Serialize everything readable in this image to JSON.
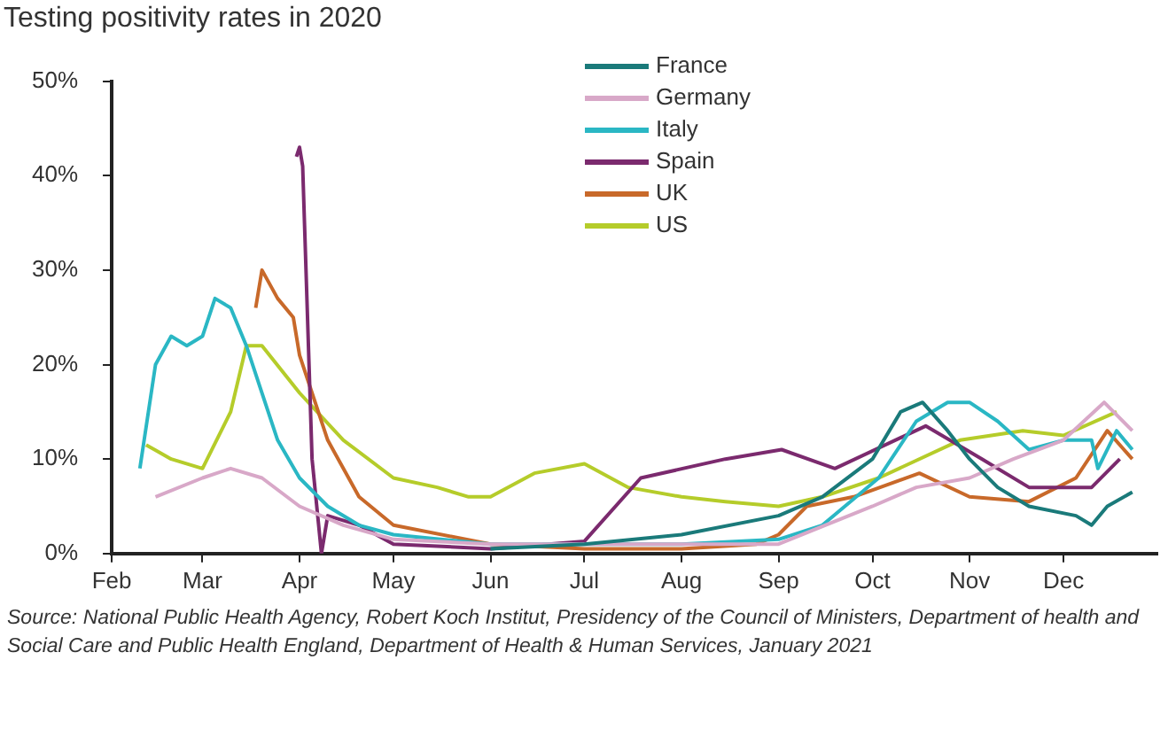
{
  "chart_data": {
    "type": "line",
    "title": "Testing positivity rates in 2020",
    "annotations": [
      "Source:  National Public Health Agency, Robert Koch Institut, Presidency of the Council of Ministers, Department of health and Social Care and Public Health England, Department of Health & Human Services, January 2021"
    ],
    "xlim": [
      "2020-02-01",
      "2020-12-31"
    ],
    "xticks": [
      {
        "value": "2020-02-01",
        "label": "Feb"
      },
      {
        "value": "2020-03-01",
        "label": "Mar"
      },
      {
        "value": "2020-04-01",
        "label": "Apr"
      },
      {
        "value": "2020-05-01",
        "label": "May"
      },
      {
        "value": "2020-06-01",
        "label": "Jun"
      },
      {
        "value": "2020-07-01",
        "label": "Jul"
      },
      {
        "value": "2020-08-01",
        "label": "Aug"
      },
      {
        "value": "2020-09-01",
        "label": "Sep"
      },
      {
        "value": "2020-10-01",
        "label": "Oct"
      },
      {
        "value": "2020-11-01",
        "label": "Nov"
      },
      {
        "value": "2020-12-01",
        "label": "Dec"
      }
    ],
    "ylim": [
      0,
      50
    ],
    "yticks": [
      {
        "value": 0,
        "label": "0%"
      },
      {
        "value": 10,
        "label": "10%"
      },
      {
        "value": 20,
        "label": "20%"
      },
      {
        "value": 30,
        "label": "30%"
      },
      {
        "value": 40,
        "label": "40%"
      },
      {
        "value": 50,
        "label": "50%"
      }
    ],
    "grid": false,
    "legend": "top",
    "line_style": "solid",
    "marker": "none",
    "series": [
      {
        "name": "France",
        "color": "#1a7a7a",
        "x": [
          "2020-06-01",
          "2020-07-01",
          "2020-08-01",
          "2020-09-01",
          "2020-09-15",
          "2020-10-01",
          "2020-10-10",
          "2020-10-17",
          "2020-10-25",
          "2020-11-01",
          "2020-11-10",
          "2020-11-20",
          "2020-12-05",
          "2020-12-10",
          "2020-12-15",
          "2020-12-23"
        ],
        "values": [
          0.5,
          1,
          2,
          4,
          6,
          10,
          15,
          16,
          13,
          10,
          7,
          5,
          4,
          3,
          5,
          6.5
        ]
      },
      {
        "name": "Germany",
        "color": "#d8a8c8",
        "x": [
          "2020-02-15",
          "2020-03-01",
          "2020-03-10",
          "2020-03-20",
          "2020-04-01",
          "2020-04-15",
          "2020-05-01",
          "2020-06-01",
          "2020-08-01",
          "2020-09-01",
          "2020-10-01",
          "2020-10-15",
          "2020-11-01",
          "2020-11-15",
          "2020-12-01",
          "2020-12-14",
          "2020-12-23"
        ],
        "values": [
          6,
          8,
          9,
          8,
          5,
          3,
          1.5,
          1,
          1,
          1,
          5,
          7,
          8,
          10,
          12,
          16,
          13
        ]
      },
      {
        "name": "Italy",
        "color": "#2ab7c4",
        "x": [
          "2020-02-10",
          "2020-02-15",
          "2020-02-20",
          "2020-02-25",
          "2020-03-01",
          "2020-03-05",
          "2020-03-10",
          "2020-03-15",
          "2020-03-20",
          "2020-03-25",
          "2020-04-01",
          "2020-04-10",
          "2020-04-20",
          "2020-05-01",
          "2020-06-01",
          "2020-08-01",
          "2020-09-01",
          "2020-09-15",
          "2020-10-03",
          "2020-10-15",
          "2020-10-25",
          "2020-11-01",
          "2020-11-10",
          "2020-11-20",
          "2020-12-01",
          "2020-12-10",
          "2020-12-12",
          "2020-12-18",
          "2020-12-23"
        ],
        "values": [
          9,
          20,
          23,
          22,
          23,
          27,
          26,
          22,
          17,
          12,
          8,
          5,
          3,
          2,
          1,
          1,
          1.5,
          3,
          8,
          14,
          16,
          16,
          14,
          11,
          12,
          12,
          9,
          13,
          11
        ]
      },
      {
        "name": "Spain",
        "color": "#7b2a6e",
        "x": [
          "2020-03-31",
          "2020-04-01",
          "2020-04-02",
          "2020-04-05",
          "2020-04-08",
          "2020-04-10",
          "2020-04-20",
          "2020-05-01",
          "2020-06-01",
          "2020-07-01",
          "2020-07-19",
          "2020-08-15",
          "2020-09-02",
          "2020-09-19",
          "2020-10-18",
          "2020-11-05",
          "2020-11-20",
          "2020-12-10",
          "2020-12-19"
        ],
        "values": [
          42,
          43,
          41,
          10,
          0,
          4,
          3,
          1,
          0.5,
          1.3,
          8,
          10,
          11,
          9,
          13.5,
          10,
          7,
          7,
          10
        ]
      },
      {
        "name": "UK",
        "color": "#c8692a",
        "x": [
          "2020-03-18",
          "2020-03-20",
          "2020-03-25",
          "2020-03-30",
          "2020-04-01",
          "2020-04-10",
          "2020-04-20",
          "2020-05-01",
          "2020-06-01",
          "2020-07-01",
          "2020-08-01",
          "2020-08-25",
          "2020-09-01",
          "2020-09-10",
          "2020-09-25",
          "2020-10-16",
          "2020-11-01",
          "2020-11-20",
          "2020-12-05",
          "2020-12-15",
          "2020-12-23"
        ],
        "values": [
          26,
          30,
          27,
          25,
          21,
          12,
          6,
          3,
          1,
          0.5,
          0.5,
          1,
          2,
          5,
          6,
          8.5,
          6,
          5.5,
          8,
          13,
          10
        ]
      },
      {
        "name": "US",
        "color": "#b5cc2a",
        "x": [
          "2020-02-12",
          "2020-02-20",
          "2020-03-01",
          "2020-03-10",
          "2020-03-15",
          "2020-03-20",
          "2020-04-01",
          "2020-04-15",
          "2020-05-01",
          "2020-05-15",
          "2020-05-25",
          "2020-06-01",
          "2020-06-15",
          "2020-07-01",
          "2020-07-15",
          "2020-08-01",
          "2020-08-15",
          "2020-09-01",
          "2020-09-15",
          "2020-10-03",
          "2020-10-29",
          "2020-11-18",
          "2020-12-01",
          "2020-12-18"
        ],
        "values": [
          11.5,
          10,
          9,
          15,
          22,
          22,
          17,
          12,
          8,
          7,
          6,
          6,
          8.5,
          9.5,
          7,
          6,
          5.5,
          5,
          6,
          8,
          12,
          13,
          12.5,
          15
        ]
      }
    ]
  }
}
